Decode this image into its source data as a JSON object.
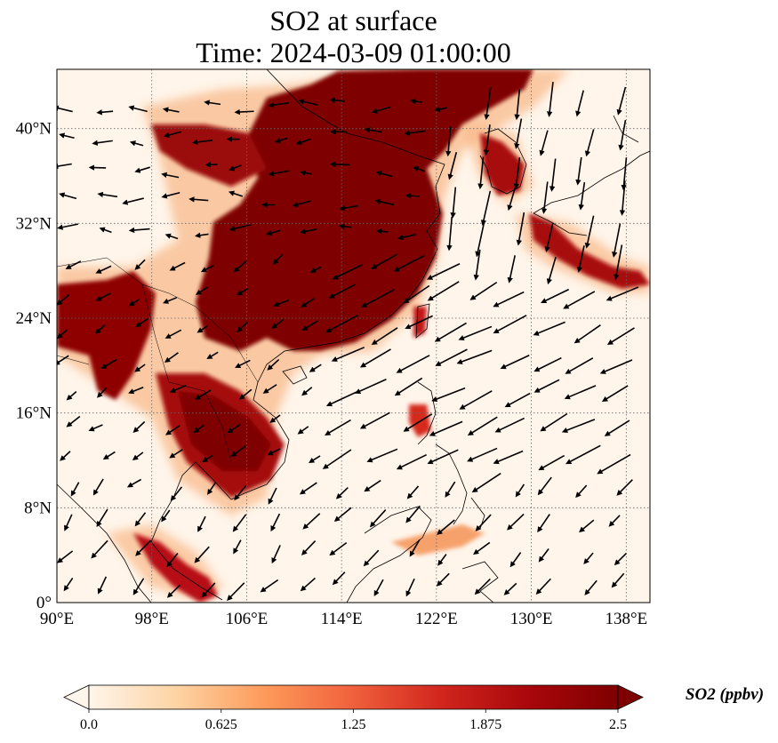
{
  "title": {
    "line1": "SO2 at surface",
    "line2": "Time: 2024-03-09 01:00:00"
  },
  "map": {
    "extent": {
      "lon": [
        90,
        140
      ],
      "lat": [
        0,
        45
      ]
    },
    "gridlines": true,
    "lon_ticks": [
      {
        "value": 90,
        "label": "90°E"
      },
      {
        "value": 98,
        "label": "98°E"
      },
      {
        "value": 106,
        "label": "106°E"
      },
      {
        "value": 114,
        "label": "114°E"
      },
      {
        "value": 122,
        "label": "122°E"
      },
      {
        "value": 130,
        "label": "130°E"
      },
      {
        "value": 138,
        "label": "138°E"
      }
    ],
    "lat_ticks": [
      {
        "value": 0,
        "label": "0°"
      },
      {
        "value": 8,
        "label": "8°N"
      },
      {
        "value": 16,
        "label": "16°N"
      },
      {
        "value": 24,
        "label": "24°N"
      },
      {
        "value": 32,
        "label": "32°N"
      },
      {
        "value": 40,
        "label": "40°N"
      }
    ],
    "field_colors": {
      "background": "#fff5ea",
      "low": "#fdd3a5",
      "mid": "#f0603c",
      "high": "#a8070b",
      "max": "#7f0000"
    }
  },
  "colorbar": {
    "label": "SO2 (ppbv)",
    "min": 0.0,
    "max": 2.5,
    "extend": "both",
    "ticks": [
      {
        "value": 0.0,
        "label": "0.0"
      },
      {
        "value": 0.625,
        "label": "0.625"
      },
      {
        "value": 1.25,
        "label": "1.25"
      },
      {
        "value": 1.875,
        "label": "1.875"
      },
      {
        "value": 2.5,
        "label": "2.5"
      }
    ],
    "stops": [
      "#fff5eb",
      "#fdd3a3",
      "#fd9a5a",
      "#f0603c",
      "#d1251d",
      "#a8070b",
      "#7f0000"
    ]
  }
}
